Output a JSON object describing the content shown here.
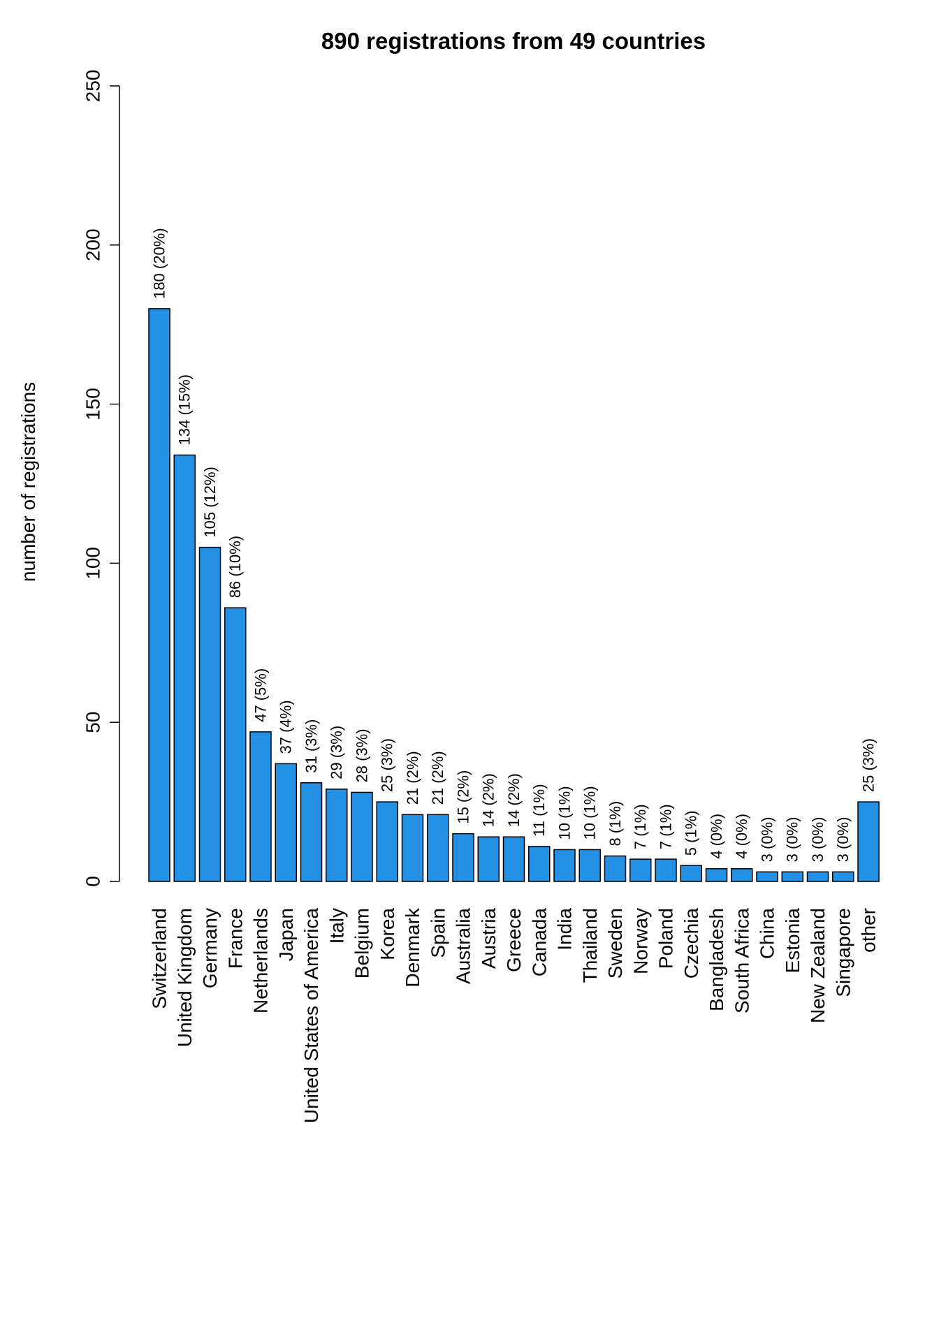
{
  "chart_data": {
    "type": "bar",
    "title": "890 registrations from 49 countries",
    "xlabel": "",
    "ylabel": "number of registrations",
    "ylim": [
      0,
      250
    ],
    "yticks": [
      "0",
      "50",
      "100",
      "150",
      "200",
      "250"
    ],
    "bar_color": "#2390E4",
    "categories": [
      "Switzerland",
      "United Kingdom",
      "Germany",
      "France",
      "Netherlands",
      "Japan",
      "United States of America",
      "Italy",
      "Belgium",
      "Korea",
      "Denmark",
      "Spain",
      "Australia",
      "Austria",
      "Greece",
      "Canada",
      "India",
      "Thailand",
      "Sweden",
      "Norway",
      "Poland",
      "Czechia",
      "Bangladesh",
      "South Africa",
      "China",
      "Estonia",
      "New Zealand",
      "Singapore",
      "other"
    ],
    "values": [
      180,
      134,
      105,
      86,
      47,
      37,
      31,
      29,
      28,
      25,
      21,
      21,
      15,
      14,
      14,
      11,
      10,
      10,
      8,
      7,
      7,
      5,
      4,
      4,
      3,
      3,
      3,
      3,
      25
    ],
    "data_labels": [
      "180 (20%)",
      "134 (15%)",
      "105 (12%)",
      "86 (10%)",
      "47 (5%)",
      "37 (4%)",
      "31 (3%)",
      "29 (3%)",
      "28 (3%)",
      "25 (3%)",
      "21 (2%)",
      "21 (2%)",
      "15 (2%)",
      "14 (2%)",
      "14 (2%)",
      "11 (1%)",
      "10 (1%)",
      "10 (1%)",
      "8 (1%)",
      "7 (1%)",
      "7 (1%)",
      "5 (1%)",
      "4 (0%)",
      "4 (0%)",
      "3 (0%)",
      "3 (0%)",
      "3 (0%)",
      "3 (0%)",
      "25 (3%)"
    ],
    "grid": false,
    "legend": "none"
  }
}
